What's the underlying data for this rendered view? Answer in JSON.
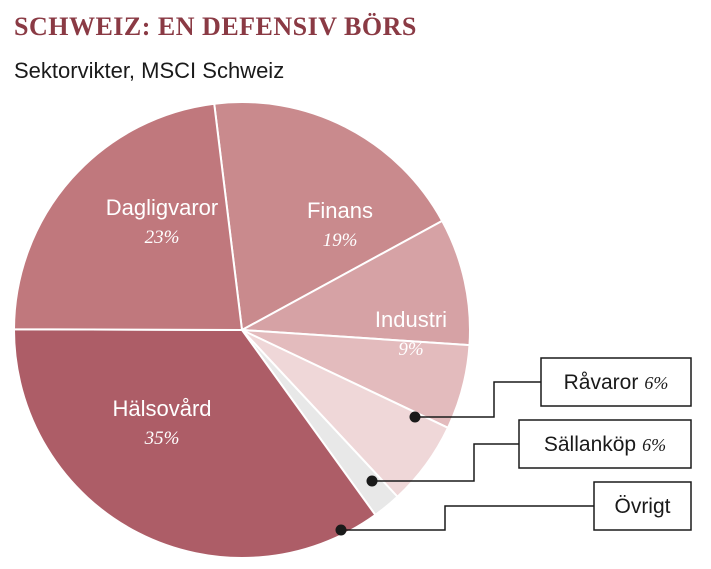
{
  "header": {
    "title": "SCHWEIZ: EN DEFENSIV BÖRS",
    "subtitle": "Sektorvikter, MSCI Schweiz"
  },
  "colors": {
    "title": "#8a3a44",
    "slice_border": "#ffffff",
    "leader_line": "#1a1a1a",
    "callout_box_border": "#1a1a1a"
  },
  "chart_data": {
    "type": "pie",
    "title": "SCHWEIZ: EN DEFENSIV BÖRS",
    "subtitle": "Sektorvikter, MSCI Schweiz",
    "start_angle_deg": -7,
    "direction": "clockwise",
    "legend": "none",
    "slices": [
      {
        "label": "Finans",
        "value": 19,
        "value_label": "19%",
        "color": "#c98a8d",
        "label_style": "inside"
      },
      {
        "label": "Industri",
        "value": 9,
        "value_label": "9%",
        "color": "#d6a2a5",
        "label_style": "inside"
      },
      {
        "label": "Råvaror",
        "value": 6,
        "value_label": "6%",
        "color": "#e3bbbd",
        "label_style": "callout"
      },
      {
        "label": "Sällanköp",
        "value": 6,
        "value_label": "6%",
        "color": "#efd7d8",
        "label_style": "callout"
      },
      {
        "label": "Övrigt",
        "value": 2,
        "value_label": "",
        "color": "#e8e8e8",
        "label_style": "callout"
      },
      {
        "label": "Hälsovård",
        "value": 35,
        "value_label": "35%",
        "color": "#ad5d67",
        "label_style": "inside"
      },
      {
        "label": "Dagligvaror",
        "value": 23,
        "value_label": "23%",
        "color": "#c0787d",
        "label_style": "inside"
      }
    ]
  }
}
